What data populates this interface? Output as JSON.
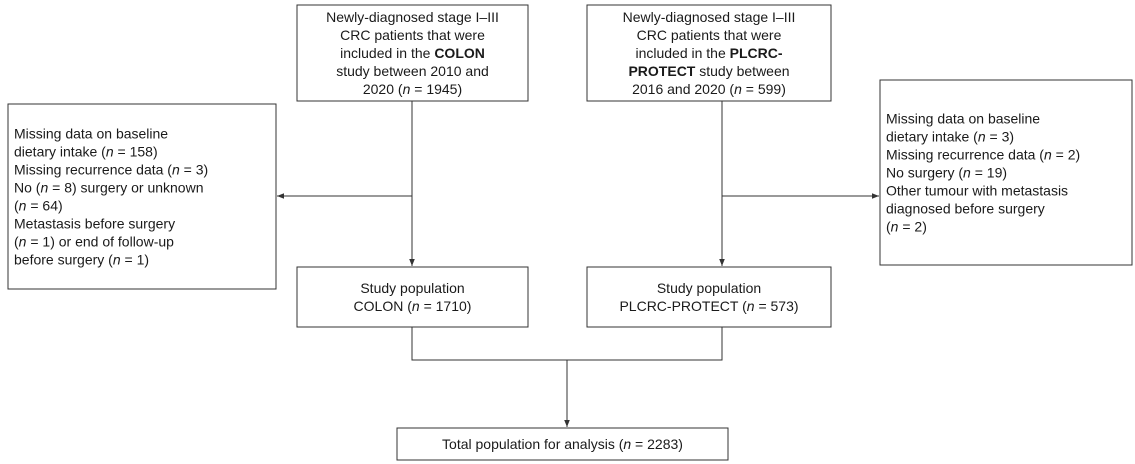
{
  "nodes": [
    {
      "lines": [
        [
          "Newly-diagnosed stage I–III"
        ],
        [
          "CRC patients that were"
        ],
        [
          "included in the ",
          {
            "text": "COLON",
            "style": "bold"
          }
        ],
        [
          "study between 2010 and"
        ],
        [
          "2020 (",
          {
            "text": "n",
            "style": "italic"
          },
          " = 1945)"
        ]
      ]
    },
    {
      "lines": [
        [
          "Newly-diagnosed stage I–III"
        ],
        [
          "CRC patients that were"
        ],
        [
          "included in the ",
          {
            "text": "PLCRC-",
            "style": "bold"
          }
        ],
        [
          {
            "text": "PROTECT",
            "style": "bold"
          },
          " study between"
        ],
        [
          "2016 and 2020 (",
          {
            "text": "n",
            "style": "italic"
          },
          " = 599)"
        ]
      ]
    },
    {
      "lines": [
        [
          "Missing data on baseline"
        ],
        [
          "dietary intake (",
          {
            "text": "n",
            "style": "italic"
          },
          " = 158)"
        ],
        [
          "Missing recurrence data (",
          {
            "text": "n",
            "style": "italic"
          },
          " = 3)"
        ],
        [
          "No (",
          {
            "text": "n",
            "style": "italic"
          },
          " = 8) surgery or unknown"
        ],
        [
          "(",
          {
            "text": "n",
            "style": "italic"
          },
          " = 64)"
        ],
        [
          "Metastasis before surgery"
        ],
        [
          "(",
          {
            "text": "n",
            "style": "italic"
          },
          " = 1) or end of follow-up"
        ],
        [
          "before surgery (",
          {
            "text": "n",
            "style": "italic"
          },
          " = 1)"
        ]
      ]
    },
    {
      "lines": [
        [
          "Missing data on baseline"
        ],
        [
          "dietary intake (",
          {
            "text": "n",
            "style": "italic"
          },
          " = 3)"
        ],
        [
          "Missing recurrence data (",
          {
            "text": "n",
            "style": "italic"
          },
          " = 2)"
        ],
        [
          "No surgery (",
          {
            "text": "n",
            "style": "italic"
          },
          " = 19)"
        ],
        [
          "Other tumour with metastasis"
        ],
        [
          "diagnosed before surgery"
        ],
        [
          "(",
          {
            "text": "n",
            "style": "italic"
          },
          " = 2)"
        ]
      ]
    },
    {
      "lines": [
        [
          "Study population"
        ],
        [
          "COLON (",
          {
            "text": "n",
            "style": "italic"
          },
          " = 1710)"
        ]
      ]
    },
    {
      "lines": [
        [
          "Study population"
        ],
        [
          "PLCRC-PROTECT (",
          {
            "text": "n",
            "style": "italic"
          },
          " = 573)"
        ]
      ]
    },
    {
      "lines": [
        [
          "Total population for analysis (",
          {
            "text": "n",
            "style": "italic"
          },
          " = 2283)"
        ]
      ]
    }
  ]
}
